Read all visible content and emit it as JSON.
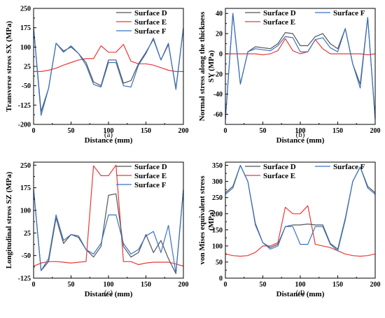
{
  "chart_data": [
    {
      "type": "line",
      "panel_label": "(a)",
      "xlabel": "Distance (mm)",
      "ylabel": "Transverse stress SX (MPa)",
      "xlim": [
        0,
        200
      ],
      "ylim": [
        -200,
        250
      ],
      "xticks": [
        0,
        50,
        100,
        150,
        200
      ],
      "yticks": [
        -200,
        -125,
        -50,
        25,
        100,
        175,
        250
      ],
      "legend_position": "top-right",
      "x": [
        0,
        10,
        20,
        30,
        40,
        50,
        60,
        70,
        80,
        90,
        100,
        110,
        120,
        130,
        140,
        150,
        160,
        170,
        180,
        190,
        200
      ],
      "series": [
        {
          "name": "Surface D",
          "color": "#555555",
          "values": [
            175,
            -150,
            -60,
            115,
            85,
            100,
            75,
            40,
            -35,
            -50,
            50,
            50,
            -40,
            -30,
            35,
            80,
            130,
            50,
            110,
            -60,
            175
          ]
        },
        {
          "name": "Surface E",
          "color": "#e83a3a",
          "values": [
            5,
            5,
            10,
            18,
            30,
            40,
            50,
            55,
            55,
            105,
            80,
            80,
            110,
            45,
            35,
            35,
            30,
            20,
            10,
            5,
            5
          ]
        },
        {
          "name": "Surface F",
          "color": "#3a72c4",
          "values": [
            175,
            -165,
            -60,
            115,
            80,
            105,
            75,
            30,
            -45,
            -55,
            40,
            40,
            -50,
            -55,
            30,
            75,
            135,
            50,
            115,
            -65,
            175
          ]
        }
      ]
    },
    {
      "type": "line",
      "panel_label": "(b)",
      "xlabel": "Distance (mm)",
      "ylabel": "Normal stress along the thickness SY (MPa)",
      "xlim": [
        0,
        200
      ],
      "ylim": [
        -70,
        45
      ],
      "xticks": [
        0,
        50,
        100,
        150,
        200
      ],
      "yticks": [
        -60,
        -40,
        -20,
        0,
        20,
        40
      ],
      "legend_position": "top-right",
      "x": [
        0,
        10,
        20,
        30,
        40,
        50,
        60,
        70,
        80,
        90,
        100,
        110,
        120,
        130,
        140,
        150,
        160,
        170,
        180,
        190,
        200
      ],
      "series": [
        {
          "name": "Surface D",
          "color": "#555555",
          "values": [
            -65,
            40,
            -30,
            2,
            7,
            6,
            5,
            10,
            21,
            20,
            8,
            8,
            17,
            20,
            10,
            5,
            25,
            -10,
            -30,
            36,
            -65
          ]
        },
        {
          "name": "Surface E",
          "color": "#e83a3a",
          "values": [
            0,
            0,
            0,
            0,
            0,
            -1,
            0,
            3,
            15,
            3,
            0,
            2,
            14,
            5,
            0,
            0,
            0,
            0,
            0,
            -1,
            0
          ]
        },
        {
          "name": "Surface F",
          "color": "#3a72c4",
          "values": [
            -65,
            40,
            -30,
            2,
            5,
            4,
            3,
            8,
            17,
            16,
            2,
            2,
            14,
            16,
            6,
            2,
            25,
            -10,
            -34,
            36,
            -65
          ]
        }
      ]
    },
    {
      "type": "line",
      "panel_label": "(c)",
      "xlabel": "Distance (mm)",
      "ylabel": "Longitudinal stress SZ (MPa)",
      "xlim": [
        0,
        200
      ],
      "ylim": [
        -125,
        260
      ],
      "xticks": [
        0,
        50,
        100,
        150,
        200
      ],
      "yticks": [
        -125,
        -50,
        25,
        100,
        175,
        250
      ],
      "legend_position": "top-right",
      "x": [
        0,
        10,
        20,
        30,
        40,
        50,
        60,
        70,
        80,
        90,
        100,
        110,
        120,
        130,
        140,
        150,
        160,
        170,
        180,
        190,
        200
      ],
      "series": [
        {
          "name": "Surface D",
          "color": "#555555",
          "values": [
            170,
            -100,
            -70,
            75,
            -10,
            20,
            10,
            -30,
            -55,
            -20,
            150,
            155,
            -20,
            -55,
            -40,
            20,
            -40,
            0,
            -60,
            -110,
            170
          ]
        },
        {
          "name": "Surface E",
          "color": "#e83a3a",
          "values": [
            -85,
            -75,
            -70,
            -70,
            -72,
            -75,
            -72,
            -70,
            248,
            215,
            215,
            250,
            -70,
            -70,
            -80,
            -75,
            -72,
            -72,
            -72,
            -78,
            -85
          ]
        },
        {
          "name": "Surface F",
          "color": "#3a72c4",
          "values": [
            170,
            -100,
            -60,
            85,
            0,
            20,
            15,
            -30,
            -45,
            -10,
            85,
            85,
            -10,
            -45,
            -30,
            15,
            30,
            -40,
            50,
            -110,
            170
          ]
        }
      ]
    },
    {
      "type": "line",
      "panel_label": "(d)",
      "xlabel": "Distance (mm)",
      "ylabel": "von Mises equivalent stress (MPa)",
      "xlim": [
        0,
        200
      ],
      "ylim": [
        0,
        360
      ],
      "xticks": [
        0,
        50,
        100,
        150,
        200
      ],
      "yticks": [
        0,
        50,
        100,
        150,
        200,
        250,
        300,
        350
      ],
      "legend_position": "top-right",
      "x": [
        0,
        10,
        20,
        30,
        40,
        50,
        60,
        70,
        80,
        90,
        100,
        110,
        120,
        130,
        140,
        150,
        160,
        170,
        180,
        190,
        200
      ],
      "series": [
        {
          "name": "Surface D",
          "color": "#555555",
          "values": [
            265,
            285,
            350,
            300,
            170,
            110,
            95,
            105,
            160,
            165,
            165,
            168,
            165,
            165,
            108,
            90,
            185,
            300,
            345,
            285,
            265
          ]
        },
        {
          "name": "Surface E",
          "color": "#e83a3a",
          "values": [
            75,
            70,
            68,
            70,
            80,
            100,
            100,
            110,
            220,
            200,
            200,
            225,
            105,
            100,
            95,
            85,
            75,
            70,
            68,
            70,
            75
          ]
        },
        {
          "name": "Surface F",
          "color": "#3a72c4",
          "values": [
            260,
            280,
            350,
            300,
            165,
            110,
            90,
            100,
            160,
            160,
            105,
            105,
            160,
            160,
            105,
            85,
            180,
            300,
            345,
            280,
            260
          ]
        }
      ]
    }
  ]
}
